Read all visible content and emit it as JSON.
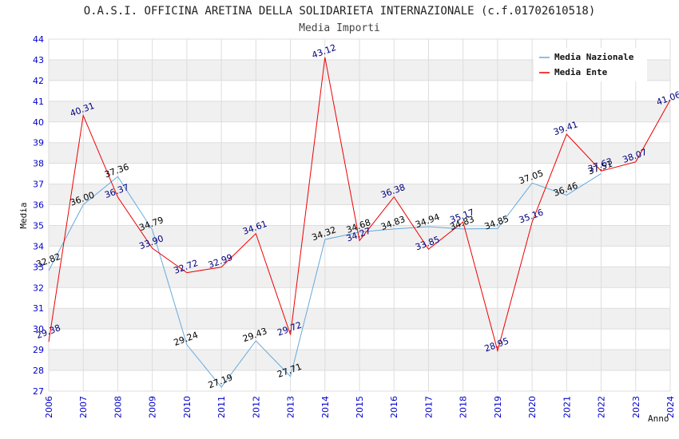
{
  "chart_data": {
    "type": "line",
    "title": "O.A.S.I. OFFICINA ARETINA DELLA SOLIDARIETA INTERNAZIONALE (c.f.01702610518)",
    "subtitle": "Media Importi",
    "xlabel": "Anno",
    "ylabel": "Media",
    "ylim": [
      27,
      44
    ],
    "grid": true,
    "legend_position": "top-right",
    "x": [
      2006,
      2007,
      2008,
      2009,
      2010,
      2011,
      2012,
      2013,
      2014,
      2015,
      2016,
      2017,
      2018,
      2019,
      2020,
      2021,
      2022,
      2023,
      2024
    ],
    "yticks": [
      27,
      28,
      29,
      30,
      31,
      32,
      33,
      34,
      35,
      36,
      37,
      38,
      39,
      40,
      41,
      42,
      43,
      44
    ],
    "series": [
      {
        "name": "Media Nazionale",
        "color": "#66aadd",
        "label_color": "#000000",
        "values": [
          32.82,
          36.0,
          37.36,
          34.79,
          29.24,
          27.19,
          29.43,
          27.71,
          34.32,
          34.68,
          34.83,
          34.94,
          34.83,
          34.85,
          37.05,
          36.46,
          37.51,
          null,
          null
        ],
        "labels": [
          "32.82",
          "36.00",
          "37.36",
          "34.79",
          "29.24",
          "27.19",
          "29.43",
          "27.71",
          "34.32",
          "34.68",
          "34.83",
          "34.94",
          "34.83",
          "34.85",
          "37.05",
          "36.46",
          "37.51",
          null,
          null
        ]
      },
      {
        "name": "Media Ente",
        "color": "#ee0000",
        "label_color": "#000080",
        "values": [
          29.38,
          40.31,
          36.37,
          33.9,
          32.72,
          32.99,
          34.61,
          29.72,
          43.12,
          34.27,
          36.38,
          33.85,
          35.17,
          28.95,
          35.16,
          39.41,
          37.63,
          38.07,
          41.06
        ],
        "labels": [
          "29.38",
          "40.31",
          "36.37",
          "33.90",
          "32.72",
          "32.99",
          "34.61",
          "29.72",
          "43.12",
          "34.27",
          "36.38",
          "33.85",
          "35.17",
          "28.95",
          "35.16",
          "39.41",
          "37.63",
          "38.07",
          "41.06"
        ]
      }
    ]
  },
  "colors": {
    "tick_text": "#0000cc",
    "band": "#f0f0f0",
    "grid": "#dddddd"
  }
}
